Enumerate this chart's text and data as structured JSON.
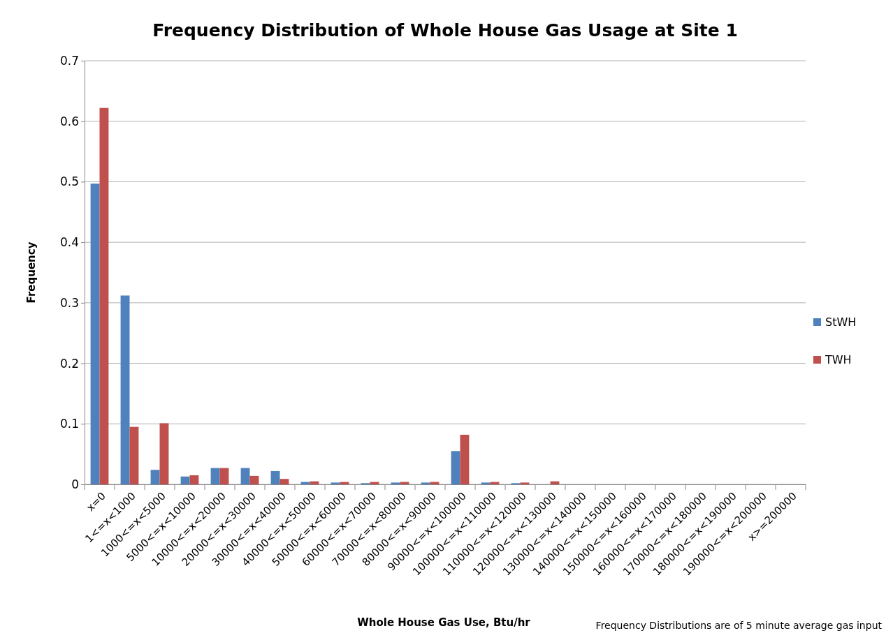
{
  "chart_data": {
    "type": "bar",
    "title": "Frequency Distribution of Whole House Gas Usage at Site 1",
    "xlabel": "Whole House Gas Use, Btu/hr",
    "ylabel": "Frequency",
    "annotations": [
      "Frequency Distributions are of 5 minute average gas input"
    ],
    "categories": [
      "x=0",
      "1<=x<1000",
      "1000<=x<5000",
      "5000<=x<10000",
      "10000<=x<20000",
      "20000<=x<30000",
      "30000<=x<40000",
      "40000<=x<50000",
      "50000<=x<60000",
      "60000<=x<70000",
      "70000<=x<80000",
      "80000<=x<90000",
      "90000<=x<100000",
      "100000<=x<110000",
      "110000<=x<120000",
      "120000<=x<130000",
      "130000<=x<140000",
      "140000<=x<150000",
      "150000<=x<160000",
      "160000<=x<170000",
      "170000<=x<180000",
      "180000<=x<190000",
      "190000<=x<200000",
      "x>=200000"
    ],
    "series": [
      {
        "name": "StWH",
        "color": "#4f81bd",
        "values": [
          0.497,
          0.312,
          0.024,
          0.013,
          0.027,
          0.027,
          0.022,
          0.004,
          0.003,
          0.002,
          0.003,
          0.003,
          0.055,
          0.003,
          0.002,
          0,
          0,
          0,
          0,
          0,
          0,
          0,
          0,
          0
        ]
      },
      {
        "name": "TWH",
        "color": "#c0504d",
        "values": [
          0.622,
          0.095,
          0.101,
          0.015,
          0.027,
          0.014,
          0.009,
          0.005,
          0.004,
          0.004,
          0.004,
          0.004,
          0.082,
          0.004,
          0.003,
          0.005,
          0,
          0,
          0,
          0,
          0,
          0,
          0,
          0
        ]
      }
    ],
    "ylim": [
      0,
      0.7
    ],
    "yticks": [
      0,
      0.1,
      0.2,
      0.3,
      0.4,
      0.5,
      0.6,
      0.7
    ],
    "grid": "y",
    "legend": "right"
  }
}
